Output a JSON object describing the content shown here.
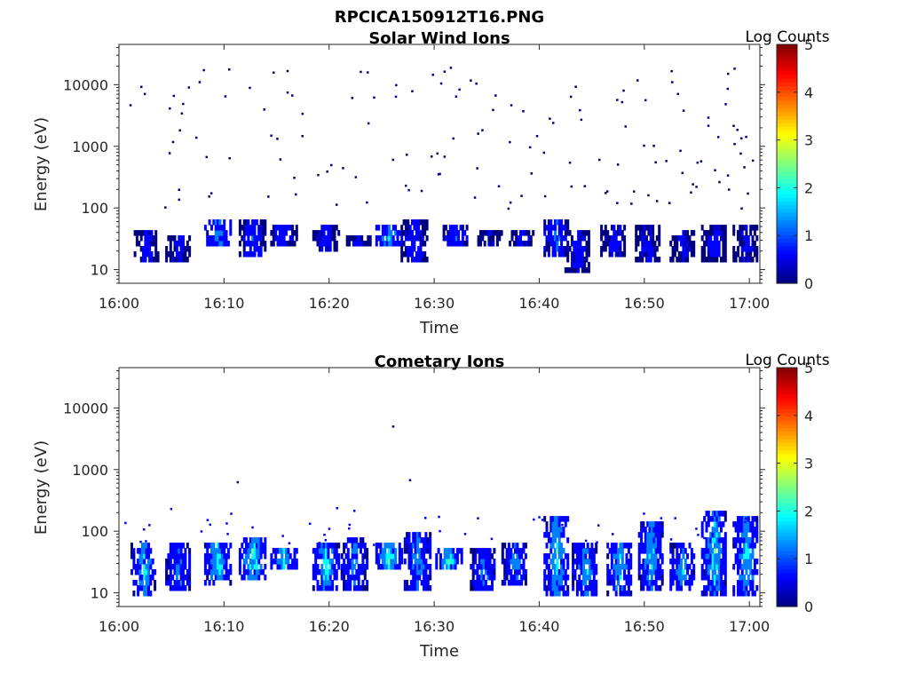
{
  "figure": {
    "title": "RPCICA150912T16.PNG"
  },
  "colormap": [
    "#00007f",
    "#0000ff",
    "#007fff",
    "#00ffff",
    "#7fff7f",
    "#ffff00",
    "#ff7f00",
    "#ff0000",
    "#7f0000"
  ],
  "chart_data": [
    {
      "type": "heatmap",
      "title": "Solar Wind Ions",
      "xlabel": "Time",
      "ylabel": "Energy (eV)",
      "x_ticks": [
        "16:00",
        "16:10",
        "16:20",
        "16:30",
        "16:40",
        "16:50",
        "17:00"
      ],
      "x_range_min": [
        0,
        61
      ],
      "y_scale": "log",
      "y_range_eV": [
        6,
        45000
      ],
      "y_ticks": [
        "10",
        "100",
        "1000",
        "10000"
      ],
      "colorbar": {
        "label": "Log Counts",
        "range": [
          0,
          5
        ],
        "ticks": [
          "0",
          "1",
          "2",
          "3",
          "4",
          "5"
        ]
      },
      "clusters": [
        {
          "t": 2.6,
          "e_lo": 12,
          "e_hi": 40,
          "c": 0.6
        },
        {
          "t": 5.6,
          "e_lo": 12,
          "e_hi": 32,
          "c": 0.6
        },
        {
          "t": 9.3,
          "e_lo": 20,
          "e_hi": 55,
          "c": 1.4
        },
        {
          "t": 12.6,
          "e_lo": 15,
          "e_hi": 55,
          "c": 1.0
        },
        {
          "t": 15.6,
          "e_lo": 22,
          "e_hi": 50,
          "c": 0.8
        },
        {
          "t": 19.6,
          "e_lo": 18,
          "e_hi": 50,
          "c": 0.6
        },
        {
          "t": 22.6,
          "e_lo": 20,
          "e_hi": 30,
          "c": 0.5
        },
        {
          "t": 25.6,
          "e_lo": 22,
          "e_hi": 50,
          "c": 1.6
        },
        {
          "t": 28.0,
          "e_lo": 12,
          "e_hi": 55,
          "c": 0.8
        },
        {
          "t": 32.0,
          "e_lo": 20,
          "e_hi": 45,
          "c": 0.9
        },
        {
          "t": 35.3,
          "e_lo": 22,
          "e_hi": 40,
          "c": 0.4
        },
        {
          "t": 38.3,
          "e_lo": 20,
          "e_hi": 40,
          "c": 0.5
        },
        {
          "t": 41.6,
          "e_lo": 14,
          "e_hi": 60,
          "c": 1.1
        },
        {
          "t": 43.6,
          "e_lo": 8,
          "e_hi": 40,
          "c": 0.6
        },
        {
          "t": 47.0,
          "e_lo": 14,
          "e_hi": 45,
          "c": 0.7
        },
        {
          "t": 50.3,
          "e_lo": 12,
          "e_hi": 45,
          "c": 0.6
        },
        {
          "t": 53.6,
          "e_lo": 12,
          "e_hi": 40,
          "c": 0.5
        },
        {
          "t": 56.6,
          "e_lo": 12,
          "e_hi": 45,
          "c": 0.6
        },
        {
          "t": 59.6,
          "e_lo": 12,
          "e_hi": 45,
          "c": 0.5
        }
      ],
      "sparse_points": {
        "count": 150,
        "e_lo": 100,
        "e_hi": 20000,
        "c": 0.3
      }
    },
    {
      "type": "heatmap",
      "title": "Cometary Ions",
      "xlabel": "Time",
      "ylabel": "Energy (eV)",
      "x_ticks": [
        "16:00",
        "16:10",
        "16:20",
        "16:30",
        "16:40",
        "16:50",
        "17:00"
      ],
      "x_range_min": [
        0,
        61
      ],
      "y_scale": "log",
      "y_range_eV": [
        6,
        45000
      ],
      "y_ticks": [
        "10",
        "100",
        "1000",
        "10000"
      ],
      "colorbar": {
        "label": "Log Counts",
        "range": [
          0,
          5
        ],
        "ticks": [
          "0",
          "1",
          "2",
          "3",
          "4",
          "5"
        ]
      },
      "clusters": [
        {
          "t": 2.3,
          "e_lo": 8,
          "e_hi": 55,
          "c": 1.6
        },
        {
          "t": 5.6,
          "e_lo": 10,
          "e_hi": 55,
          "c": 1.2
        },
        {
          "t": 9.3,
          "e_lo": 12,
          "e_hi": 65,
          "c": 1.9
        },
        {
          "t": 12.6,
          "e_lo": 15,
          "e_hi": 70,
          "c": 2.1
        },
        {
          "t": 15.6,
          "e_lo": 22,
          "e_hi": 45,
          "c": 2.0
        },
        {
          "t": 19.6,
          "e_lo": 10,
          "e_hi": 65,
          "c": 1.8
        },
        {
          "t": 22.3,
          "e_lo": 10,
          "e_hi": 70,
          "c": 1.3
        },
        {
          "t": 25.6,
          "e_lo": 20,
          "e_hi": 55,
          "c": 2.2
        },
        {
          "t": 28.3,
          "e_lo": 10,
          "e_hi": 90,
          "c": 1.5
        },
        {
          "t": 31.3,
          "e_lo": 20,
          "e_hi": 45,
          "c": 1.8
        },
        {
          "t": 34.6,
          "e_lo": 10,
          "e_hi": 45,
          "c": 1.2
        },
        {
          "t": 37.6,
          "e_lo": 12,
          "e_hi": 55,
          "c": 1.3
        },
        {
          "t": 41.6,
          "e_lo": 8,
          "e_hi": 150,
          "c": 1.9
        },
        {
          "t": 44.3,
          "e_lo": 8,
          "e_hi": 55,
          "c": 1.5
        },
        {
          "t": 47.6,
          "e_lo": 8,
          "e_hi": 65,
          "c": 1.7
        },
        {
          "t": 50.6,
          "e_lo": 10,
          "e_hi": 120,
          "c": 1.6
        },
        {
          "t": 53.6,
          "e_lo": 10,
          "e_hi": 55,
          "c": 1.5
        },
        {
          "t": 56.6,
          "e_lo": 8,
          "e_hi": 180,
          "c": 1.8
        },
        {
          "t": 59.6,
          "e_lo": 8,
          "e_hi": 150,
          "c": 1.7
        }
      ],
      "sparse_points": {
        "count": 50,
        "e_lo": 60,
        "e_hi": 250,
        "c": 0.4
      },
      "isolated_points": [
        {
          "t": 11.2,
          "e": 650,
          "c": 0.2
        },
        {
          "t": 26.0,
          "e": 5200,
          "c": 0.2
        },
        {
          "t": 27.6,
          "e": 700,
          "c": 0.2
        }
      ]
    }
  ]
}
